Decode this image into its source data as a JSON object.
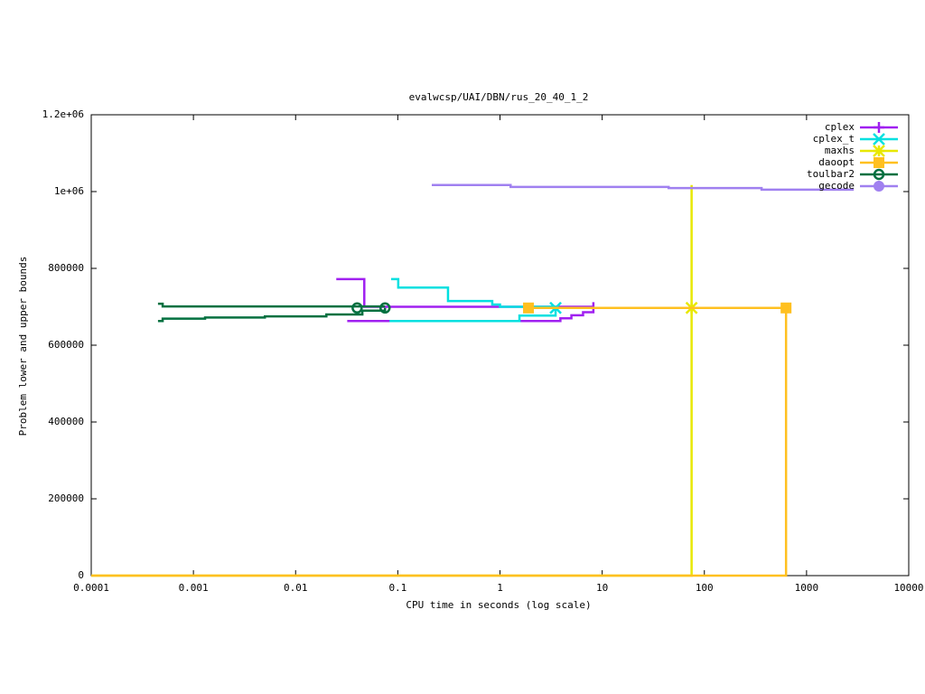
{
  "chart_data": {
    "type": "line",
    "title": "evalwcsp/UAI/DBN/rus_20_40_1_2",
    "x_label": "CPU time in seconds (log scale)",
    "y_label": "Problem lower and upper bounds",
    "xscale": "log",
    "xlim": [
      0.0001,
      10000
    ],
    "xticks": [
      0.0001,
      0.001,
      0.01,
      0.1,
      1,
      10,
      100,
      1000,
      10000
    ],
    "ylim": [
      0,
      1200000
    ],
    "yticks": [
      0,
      200000,
      400000,
      600000,
      800000,
      {
        "value": 1000000,
        "label": "1e+06"
      },
      {
        "value": 1200000,
        "label": "1.2e+06"
      }
    ],
    "legend": "top-right",
    "series": [
      {
        "name": "cplex",
        "color": "#a020f0",
        "marker": "plus",
        "x": [
          0.025,
          0.047,
          0.047,
          8.2,
          null,
          0.032,
          3.9,
          3.9,
          5,
          5,
          6.5,
          6.5,
          8.2,
          8.2
        ],
        "values": [
          772000,
          772000,
          700000,
          700000,
          null,
          663000,
          663000,
          670000,
          670000,
          678000,
          678000,
          686000,
          686000,
          712000
        ],
        "points": {
          "x": [],
          "values": []
        }
      },
      {
        "name": "cplex_t",
        "color": "#00e0e0",
        "marker": "cross",
        "x": [
          0.086,
          0.101,
          0.101,
          0.31,
          0.31,
          0.84,
          0.84,
          1.0,
          1.0,
          3.5,
          null,
          0.083,
          1.55,
          1.55,
          3.5,
          3.5
        ],
        "values": [
          772000,
          772000,
          750000,
          750000,
          715000,
          715000,
          706000,
          706000,
          700000,
          700000,
          null,
          663000,
          663000,
          677000,
          677000,
          697000
        ],
        "points": {
          "x": [
            3.5
          ],
          "values": [
            697000
          ]
        }
      },
      {
        "name": "maxhs",
        "color": "#e8e800",
        "marker": "star",
        "x": [
          75,
          75,
          null,
          0.0001,
          75,
          75
        ],
        "values": [
          1017000,
          697000,
          null,
          0,
          0,
          697000
        ],
        "points": {
          "x": [
            75
          ],
          "values": [
            697000
          ]
        }
      },
      {
        "name": "daoopt",
        "color": "#ffc020",
        "marker": "square",
        "x": [
          1.9,
          630,
          null,
          0.0001,
          630,
          630
        ],
        "values": [
          697000,
          697000,
          null,
          0,
          0,
          697000
        ],
        "points": {
          "x": [
            1.9,
            630
          ],
          "values": [
            697000,
            697000
          ]
        }
      },
      {
        "name": "toulbar2",
        "color": "#007040",
        "marker": "circle",
        "x": [
          0.00045,
          0.0005,
          0.0005,
          0.075,
          null,
          0.00045,
          0.0005,
          0.0005,
          0.0013,
          0.0013,
          0.005,
          0.005,
          0.02,
          0.02,
          0.045,
          0.045,
          0.075,
          0.075
        ],
        "values": [
          708000,
          708000,
          701000,
          701000,
          null,
          663000,
          663000,
          669000,
          669000,
          672000,
          672000,
          675000,
          675000,
          680000,
          680000,
          690000,
          690000,
          697000
        ],
        "points": {
          "x": [
            0.04,
            0.075
          ],
          "values": [
            697000,
            697000
          ]
        }
      },
      {
        "name": "gecode",
        "color": "#a080f0",
        "marker": "disc",
        "x": [
          0.215,
          1.27,
          1.27,
          44.7,
          44.7,
          363,
          363,
          2900
        ],
        "values": [
          1017000,
          1017000,
          1012000,
          1012000,
          1009000,
          1009000,
          1005000,
          1005000
        ],
        "points": {
          "x": [],
          "values": []
        }
      }
    ]
  }
}
